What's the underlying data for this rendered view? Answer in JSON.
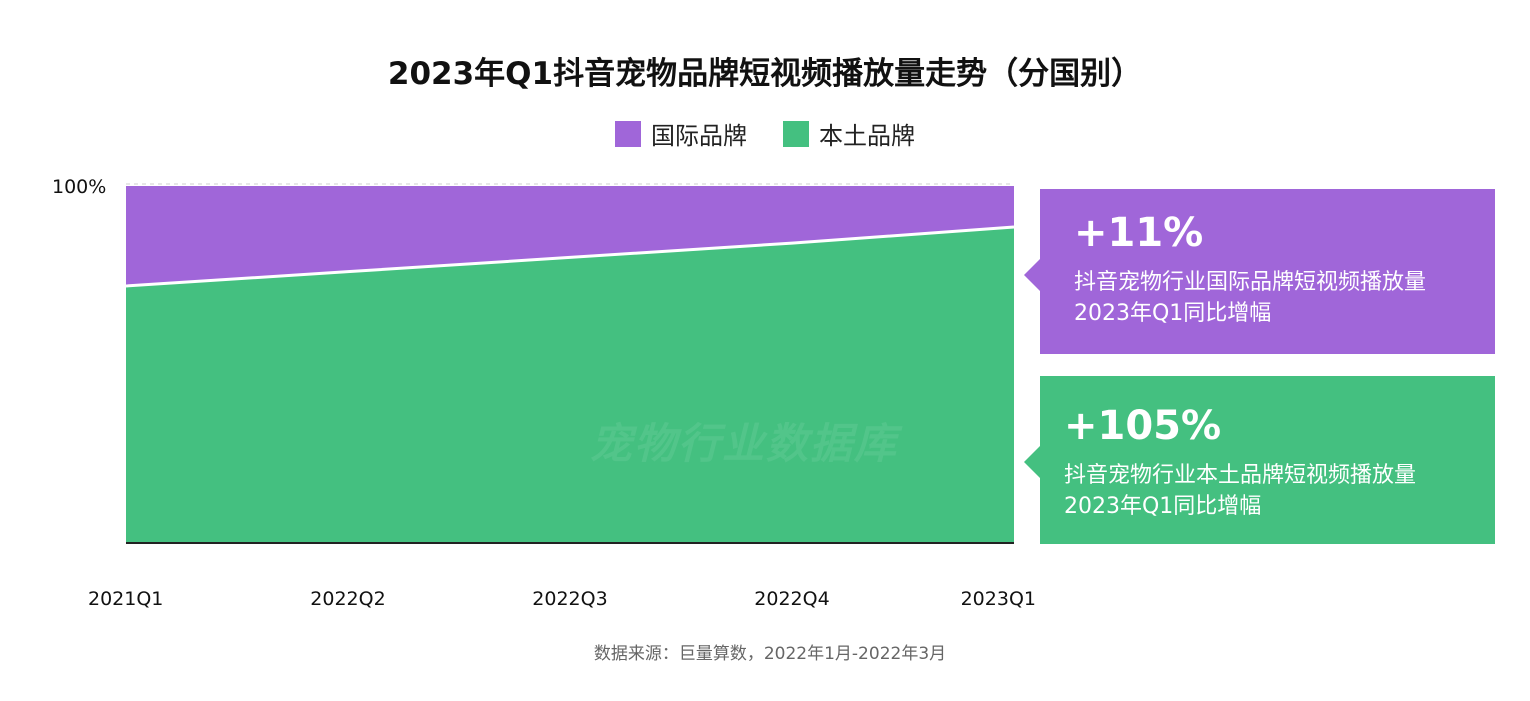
{
  "title": "2023年Q1抖音宠物品牌短视频播放量走势（分国别）",
  "legend": [
    {
      "label": "国际品牌",
      "color": "#a066d9"
    },
    {
      "label": "本土品牌",
      "color": "#44c080"
    }
  ],
  "chart_data": {
    "type": "area",
    "stacked_percent": true,
    "categories": [
      "2021Q1",
      "2022Q2",
      "2022Q3",
      "2022Q4",
      "2023Q1"
    ],
    "series": [
      {
        "name": "本土品牌",
        "color": "#44c080",
        "values": [
          72,
          76,
          80,
          84,
          88.5
        ]
      },
      {
        "name": "国际品牌",
        "color": "#a066d9",
        "values": [
          28,
          24,
          20,
          16,
          11.5
        ]
      }
    ],
    "y_tick_label": "100%",
    "ylim": [
      0,
      100
    ]
  },
  "callouts": [
    {
      "value": "+11%",
      "line1": "抖音宠物行业国际品牌短视频播放量",
      "line2": "2023年Q1同比增幅",
      "color": "#a066d9"
    },
    {
      "value": "+105%",
      "line1": "抖音宠物行业本土品牌短视频播放量",
      "line2": "2023年Q1同比增幅",
      "color": "#44c080"
    }
  ],
  "watermark": "宠物行业数据库",
  "source": "数据来源：巨量算数，2022年1月-2022年3月"
}
